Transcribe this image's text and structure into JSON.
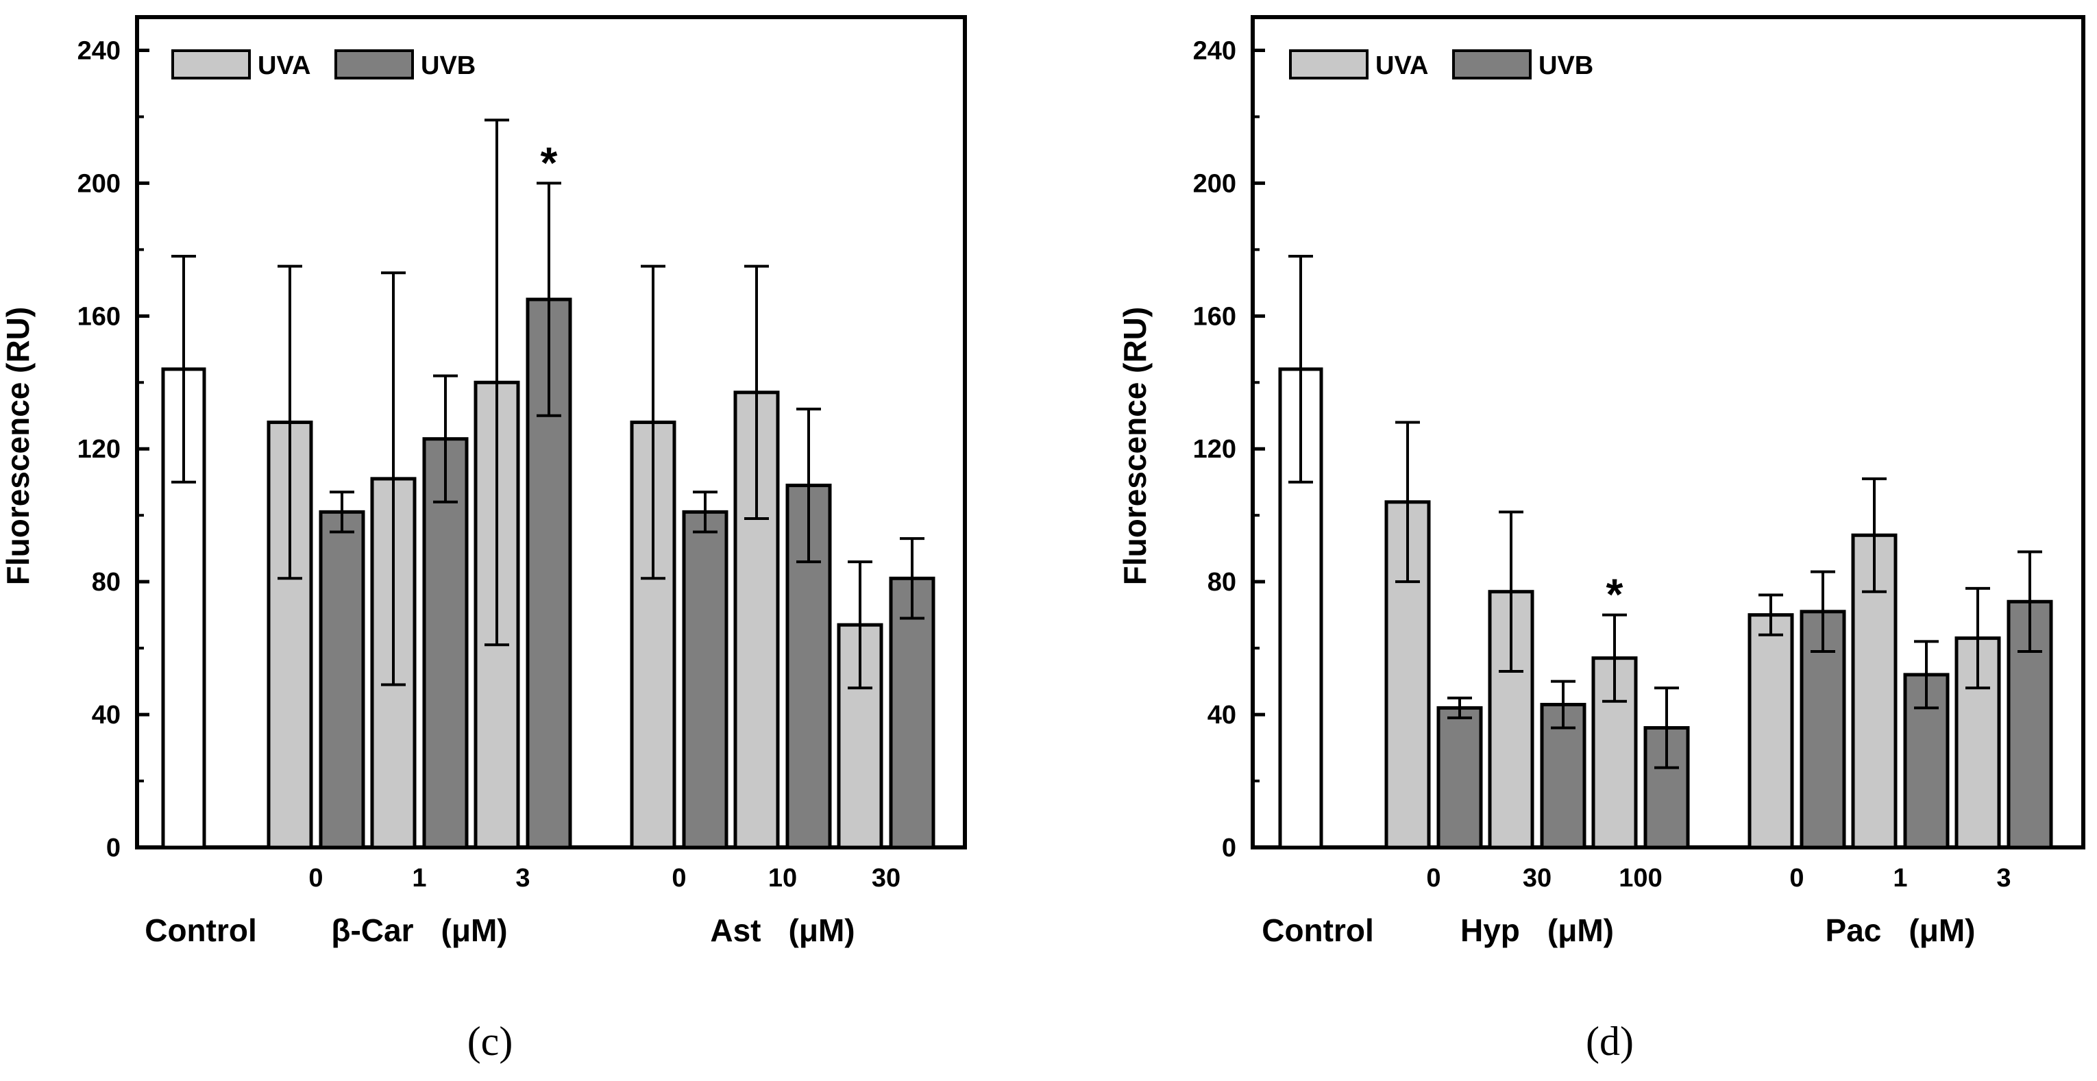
{
  "colors": {
    "control": "#ffffff",
    "uva": "#c8c8c8",
    "uvb": "#7f7f7f",
    "stroke": "#000000"
  },
  "chart_data": [
    {
      "type": "bar",
      "panel": "(c)",
      "ylabel": "Fluorescence   (RU)",
      "ylim": [
        0,
        250
      ],
      "yticks": [
        "0",
        "40",
        "80",
        "120",
        "160",
        "200",
        "240"
      ],
      "legend": {
        "uva": "UVA",
        "uvb": "UVB",
        "placement": "top-left"
      },
      "groups": [
        {
          "name": "Control",
          "unit": "",
          "x_labels": []
        },
        {
          "name": "β-Car",
          "unit": "(μM)",
          "x_labels": [
            "0",
            "1",
            "3"
          ]
        },
        {
          "name": "Ast",
          "unit": "(μM)",
          "x_labels": [
            "0",
            "10",
            "30"
          ]
        }
      ],
      "control": {
        "value": 144,
        "err": 34
      },
      "bars": [
        {
          "group": "β-Car",
          "conc": "0",
          "series": "UVA",
          "value": 128,
          "err": 47
        },
        {
          "group": "β-Car",
          "conc": "0",
          "series": "UVB",
          "value": 101,
          "err": 6
        },
        {
          "group": "β-Car",
          "conc": "1",
          "series": "UVA",
          "value": 111,
          "err": 62
        },
        {
          "group": "β-Car",
          "conc": "1",
          "series": "UVB",
          "value": 123,
          "err": 19
        },
        {
          "group": "β-Car",
          "conc": "3",
          "series": "UVA",
          "value": 140,
          "err": 79
        },
        {
          "group": "β-Car",
          "conc": "3",
          "series": "UVB",
          "value": 165,
          "err": 35,
          "marker": "*"
        },
        {
          "group": "Ast",
          "conc": "0",
          "series": "UVA",
          "value": 128,
          "err": 47
        },
        {
          "group": "Ast",
          "conc": "0",
          "series": "UVB",
          "value": 101,
          "err": 6
        },
        {
          "group": "Ast",
          "conc": "10",
          "series": "UVA",
          "value": 137,
          "err": 38
        },
        {
          "group": "Ast",
          "conc": "10",
          "series": "UVB",
          "value": 109,
          "err": 23
        },
        {
          "group": "Ast",
          "conc": "30",
          "series": "UVA",
          "value": 67,
          "err": 19
        },
        {
          "group": "Ast",
          "conc": "30",
          "series": "UVB",
          "value": 81,
          "err": 12
        }
      ]
    },
    {
      "type": "bar",
      "panel": "(d)",
      "ylabel": "Fluorescence   (RU)",
      "ylim": [
        0,
        250
      ],
      "yticks": [
        "0",
        "40",
        "80",
        "120",
        "160",
        "200",
        "240"
      ],
      "legend": {
        "uva": "UVA",
        "uvb": "UVB",
        "placement": "top-left"
      },
      "groups": [
        {
          "name": "Control",
          "unit": "",
          "x_labels": []
        },
        {
          "name": "Hyp",
          "unit": "(μM)",
          "x_labels": [
            "0",
            "30",
            "100"
          ]
        },
        {
          "name": "Pac",
          "unit": "(μM)",
          "x_labels": [
            "0",
            "1",
            "3"
          ]
        }
      ],
      "control": {
        "value": 144,
        "err": 34
      },
      "bars": [
        {
          "group": "Hyp",
          "conc": "0",
          "series": "UVA",
          "value": 104,
          "err": 24
        },
        {
          "group": "Hyp",
          "conc": "0",
          "series": "UVB",
          "value": 42,
          "err": 3
        },
        {
          "group": "Hyp",
          "conc": "30",
          "series": "UVA",
          "value": 77,
          "err": 24
        },
        {
          "group": "Hyp",
          "conc": "30",
          "series": "UVB",
          "value": 43,
          "err": 7
        },
        {
          "group": "Hyp",
          "conc": "100",
          "series": "UVA",
          "value": 57,
          "err": 13,
          "marker": "*"
        },
        {
          "group": "Hyp",
          "conc": "100",
          "series": "UVB",
          "value": 36,
          "err": 12
        },
        {
          "group": "Pac",
          "conc": "0",
          "series": "UVA",
          "value": 70,
          "err": 6
        },
        {
          "group": "Pac",
          "conc": "0",
          "series": "UVB",
          "value": 71,
          "err": 12
        },
        {
          "group": "Pac",
          "conc": "1",
          "series": "UVA",
          "value": 94,
          "err": 17
        },
        {
          "group": "Pac",
          "conc": "1",
          "series": "UVB",
          "value": 52,
          "err": 10
        },
        {
          "group": "Pac",
          "conc": "3",
          "series": "UVA",
          "value": 63,
          "err": 15
        },
        {
          "group": "Pac",
          "conc": "3",
          "series": "UVB",
          "value": 74,
          "err": 15
        }
      ]
    }
  ]
}
